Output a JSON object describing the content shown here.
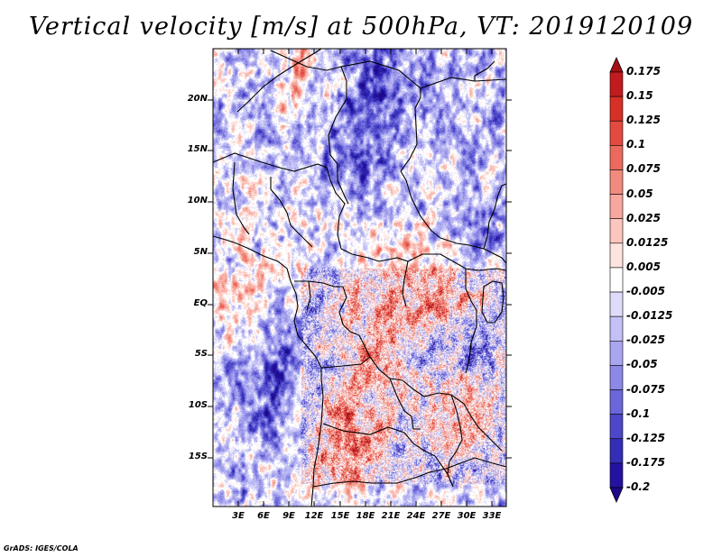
{
  "title": "Vertical velocity [m/s] at 500hPa, VT: 2019120109",
  "footer": "GrADS: IGES/COLA",
  "lat_labels": [
    "20N",
    "15N",
    "10N",
    "5N",
    "EQ",
    "5S",
    "10S",
    "15S"
  ],
  "lon_labels": [
    "3E",
    "6E",
    "9E",
    "12E",
    "15E",
    "18E",
    "21E",
    "24E",
    "27E",
    "30E",
    "33E"
  ],
  "colorbar": {
    "labels": [
      "0.175",
      "0.15",
      "0.125",
      "0.1",
      "0.075",
      "0.05",
      "0.025",
      "0.0125",
      "0.005",
      "-0.005",
      "-0.0125",
      "-0.025",
      "-0.05",
      "-0.075",
      "-0.1",
      "-0.125",
      "-0.175",
      "-0.2"
    ],
    "colors": [
      "#a50f15",
      "#c21b1f",
      "#d63027",
      "#e34a40",
      "#ec6a5d",
      "#f28b7e",
      "#f7a79d",
      "#fbc6bd",
      "#fde4de",
      "#ffffff",
      "#dedcfa",
      "#c3c1f5",
      "#a9a6ef",
      "#8b88e6",
      "#6b66d9",
      "#4d47c9",
      "#342db6",
      "#2412a0",
      "#1c0a8a"
    ]
  },
  "map": {
    "lon_range": [
      0,
      35.5
    ],
    "lat_range": [
      -20,
      24.5
    ],
    "palette": {
      "warm": "#d03a35",
      "cool": "#5a55d8",
      "neutral": "#ffffff"
    }
  }
}
